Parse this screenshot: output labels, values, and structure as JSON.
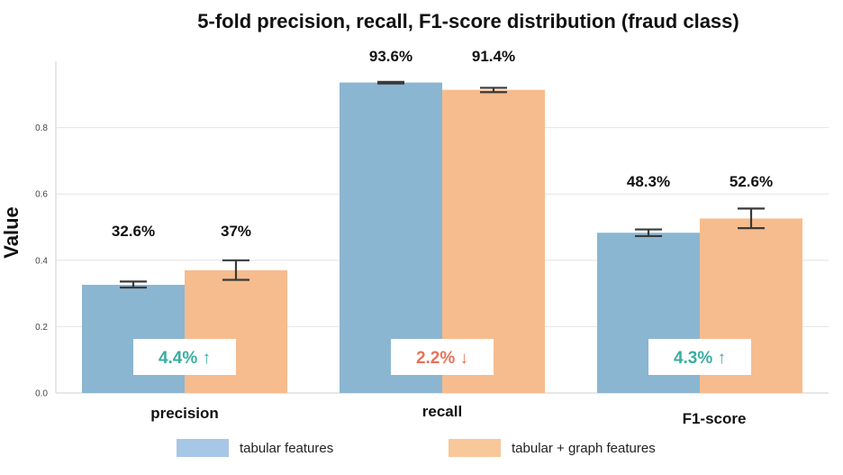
{
  "chart_data": {
    "type": "bar",
    "title": "5-fold precision, recall, F1-score distribution (fraud class)",
    "xlabel": "",
    "ylabel": "Value",
    "ylim": [
      0,
      1.0
    ],
    "yticks": [
      0.0,
      0.2,
      0.4,
      0.6,
      0.8
    ],
    "ytick_labels": [
      "0.0",
      "0.2",
      "0.4",
      "0.6",
      "0.8"
    ],
    "grid": true,
    "categories": [
      "precision",
      "recall",
      "F1-score"
    ],
    "series": [
      {
        "name": "tabular features",
        "color": "#8ab6d1",
        "values": [
          0.326,
          0.936,
          0.483
        ],
        "err_low": [
          0.318,
          0.933,
          0.473
        ],
        "err_high": [
          0.336,
          0.938,
          0.493
        ],
        "labels": [
          "32.6%",
          "93.6%",
          "48.3%"
        ]
      },
      {
        "name": "tabular + graph features",
        "color": "#f6bc8e",
        "values": [
          0.37,
          0.914,
          0.526
        ],
        "err_low": [
          0.341,
          0.907,
          0.497
        ],
        "err_high": [
          0.4,
          0.92,
          0.556
        ],
        "labels": [
          "37%",
          "91.4%",
          "52.6%"
        ]
      }
    ],
    "annotations": [
      {
        "text": "4.4% ↑",
        "color": "#3aada0",
        "category": "precision"
      },
      {
        "text": "2.2% ↓",
        "color": "#e8735a",
        "category": "recall"
      },
      {
        "text": "4.3% ↑",
        "color": "#3aada0",
        "category": "F1-score"
      }
    ],
    "legend": {
      "placement": "bottom-center",
      "entries": [
        {
          "label": "tabular features",
          "color": "#a7c7e7"
        },
        {
          "label": "tabular + graph features",
          "color": "#f8c89a"
        }
      ]
    },
    "colors": {
      "grid": "#e4e4e4",
      "axis": "#cfcfcf",
      "errorbar": "#3a3a3a",
      "tick_text": "#444444",
      "text": "#111111"
    }
  }
}
